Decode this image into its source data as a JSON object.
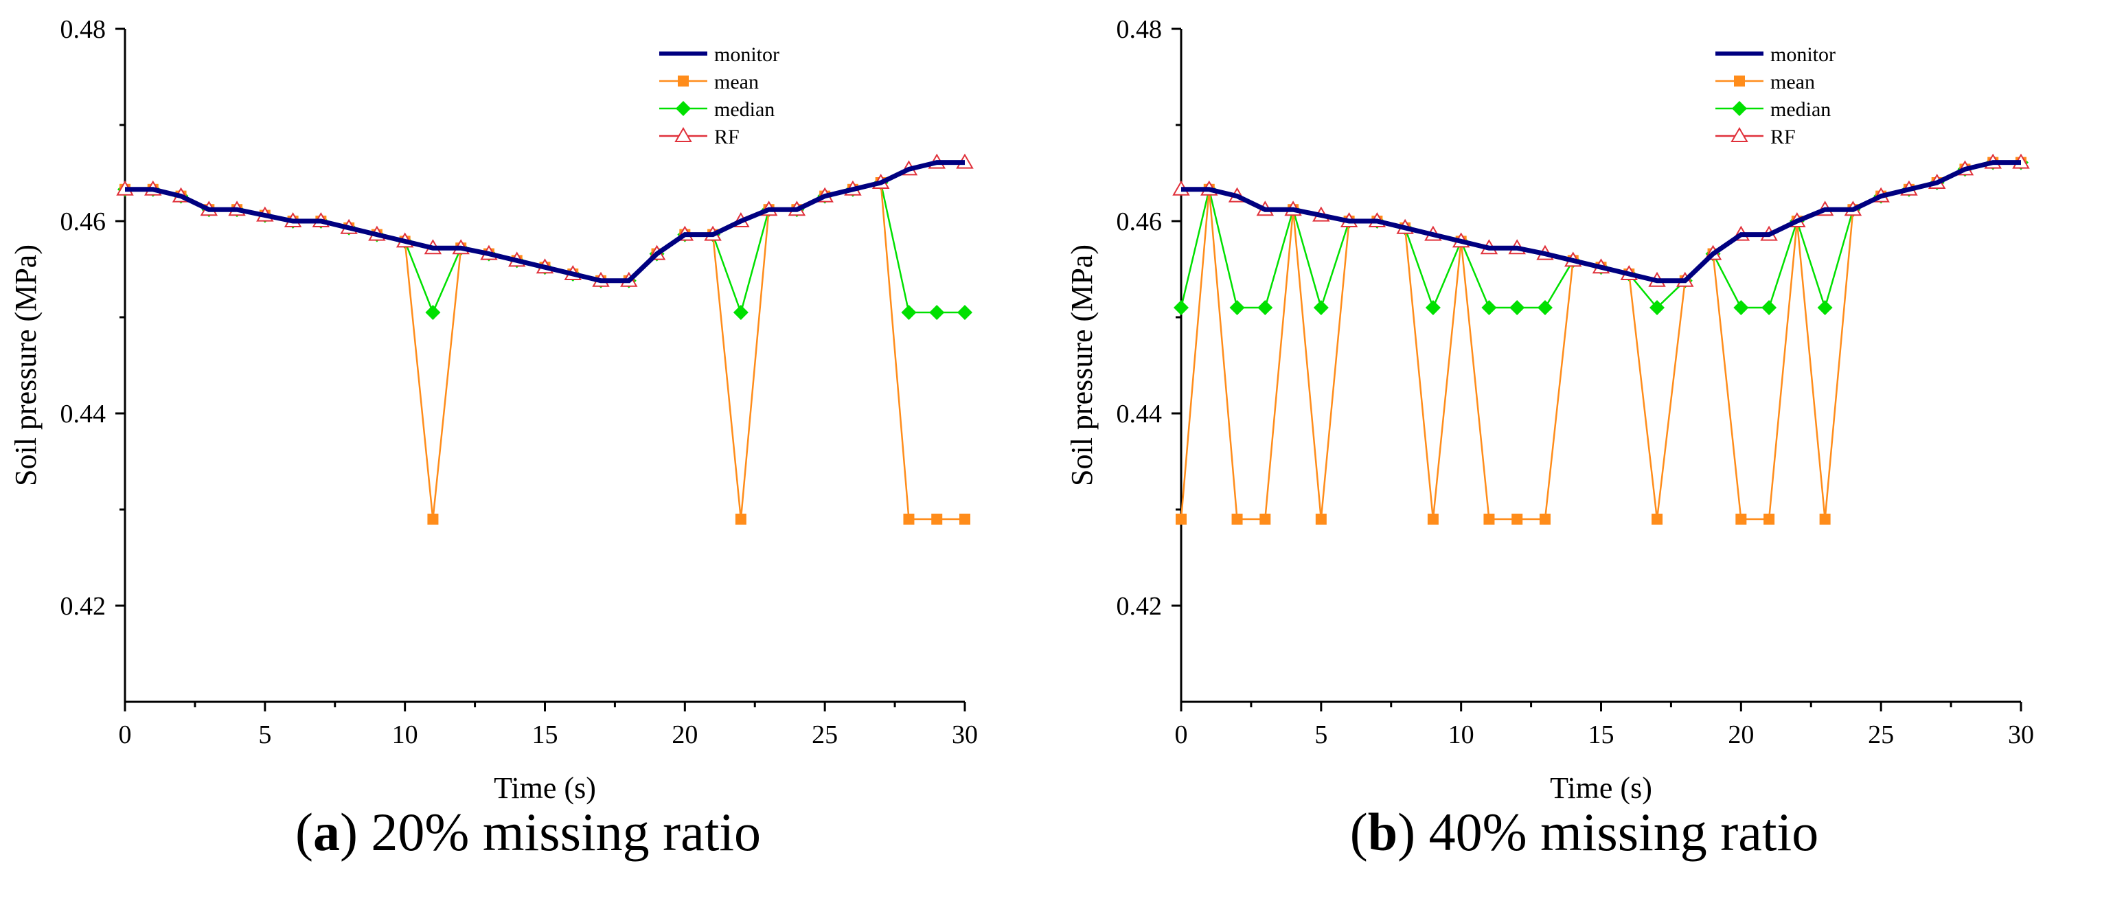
{
  "chart_data": [
    {
      "type": "line",
      "caption": {
        "open": "(",
        "letter": "a",
        "rest": ") 20% missing ratio"
      },
      "xlabel": "Time (s)",
      "ylabel": "Soil pressure (MPa)",
      "xlim": [
        0,
        30
      ],
      "ylim": [
        0.41,
        0.48
      ],
      "xticks": [
        0,
        5,
        10,
        15,
        20,
        25,
        30
      ],
      "yticks": [
        0.42,
        0.44,
        0.46,
        0.48
      ],
      "ytick_labels": [
        "0.42",
        "0.44",
        "0.46",
        "0.48"
      ],
      "grid": false,
      "legend_position": "top-right",
      "x": [
        0,
        1,
        2,
        3,
        4,
        5,
        6,
        7,
        8,
        9,
        10,
        11,
        12,
        13,
        14,
        15,
        16,
        17,
        18,
        19,
        20,
        21,
        22,
        23,
        24,
        25,
        26,
        27,
        28,
        29,
        30
      ],
      "series": [
        {
          "name": "monitor",
          "color": "#000080",
          "marker": "none",
          "values": [
            0.4633,
            0.4633,
            0.4626,
            0.4612,
            0.4612,
            0.4606,
            0.46,
            0.46,
            0.4593,
            0.4586,
            0.4579,
            0.4572,
            0.4572,
            0.4566,
            0.4559,
            0.4552,
            0.4545,
            0.4538,
            0.4538,
            0.4566,
            0.4586,
            0.4586,
            0.46,
            0.4612,
            0.4612,
            0.4626,
            0.4633,
            0.464,
            0.4654,
            0.4661,
            0.4661
          ]
        },
        {
          "name": "mean",
          "color": "#FF8C1A",
          "marker": "square",
          "values": [
            0.4633,
            0.4633,
            0.4626,
            0.4612,
            0.4612,
            0.4606,
            0.46,
            0.46,
            0.4593,
            0.4586,
            0.4579,
            0.429,
            0.4572,
            0.4566,
            0.4559,
            0.4552,
            0.4545,
            0.4538,
            0.4538,
            0.4566,
            0.4586,
            0.4586,
            0.429,
            0.4612,
            0.4612,
            0.4626,
            0.4633,
            0.464,
            0.429,
            0.429,
            0.429
          ]
        },
        {
          "name": "median",
          "color": "#00E000",
          "marker": "diamond",
          "values": [
            0.4633,
            0.4633,
            0.4626,
            0.4612,
            0.4612,
            0.4606,
            0.46,
            0.46,
            0.4593,
            0.4586,
            0.4579,
            0.4505,
            0.4572,
            0.4566,
            0.4559,
            0.4552,
            0.4545,
            0.4538,
            0.4538,
            0.4566,
            0.4586,
            0.4586,
            0.4505,
            0.4612,
            0.4612,
            0.4626,
            0.4633,
            0.464,
            0.4505,
            0.4505,
            0.4505
          ]
        },
        {
          "name": "RF",
          "color": "#E0303A",
          "marker": "triangle",
          "values": [
            0.4633,
            0.4633,
            0.4626,
            0.4612,
            0.4612,
            0.4606,
            0.46,
            0.46,
            0.4593,
            0.4586,
            0.4579,
            0.4572,
            0.4572,
            0.4566,
            0.4559,
            0.4552,
            0.4545,
            0.4538,
            0.4538,
            0.4566,
            0.4586,
            0.4586,
            0.46,
            0.4612,
            0.4612,
            0.4626,
            0.4633,
            0.464,
            0.4654,
            0.4661,
            0.4661
          ]
        }
      ]
    },
    {
      "type": "line",
      "caption": {
        "open": "(",
        "letter": "b",
        "rest": ") 40% missing ratio"
      },
      "xlabel": "Time (s)",
      "ylabel": "Soil pressure (MPa)",
      "xlim": [
        0,
        30
      ],
      "ylim": [
        0.41,
        0.48
      ],
      "xticks": [
        0,
        5,
        10,
        15,
        20,
        25,
        30
      ],
      "yticks": [
        0.42,
        0.44,
        0.46,
        0.48
      ],
      "ytick_labels": [
        "0.42",
        "0.44",
        "0.46",
        "0.48"
      ],
      "grid": false,
      "legend_position": "top-right",
      "x": [
        0,
        1,
        2,
        3,
        4,
        5,
        6,
        7,
        8,
        9,
        10,
        11,
        12,
        13,
        14,
        15,
        16,
        17,
        18,
        19,
        20,
        21,
        22,
        23,
        24,
        25,
        26,
        27,
        28,
        29,
        30
      ],
      "series": [
        {
          "name": "monitor",
          "color": "#000080",
          "marker": "none",
          "values": [
            0.4633,
            0.4633,
            0.4626,
            0.4612,
            0.4612,
            0.4606,
            0.46,
            0.46,
            0.4593,
            0.4586,
            0.4579,
            0.4572,
            0.4572,
            0.4566,
            0.4559,
            0.4552,
            0.4545,
            0.4538,
            0.4538,
            0.4566,
            0.4586,
            0.4586,
            0.46,
            0.4612,
            0.4612,
            0.4626,
            0.4633,
            0.464,
            0.4654,
            0.4661,
            0.4661
          ]
        },
        {
          "name": "mean",
          "color": "#FF8C1A",
          "marker": "square",
          "values": [
            0.429,
            0.4633,
            0.429,
            0.429,
            0.4612,
            0.429,
            0.46,
            0.46,
            0.4593,
            0.429,
            0.4579,
            0.429,
            0.429,
            0.429,
            0.4559,
            0.4552,
            0.4545,
            0.429,
            0.4538,
            0.4566,
            0.429,
            0.429,
            0.46,
            0.429,
            0.4612,
            0.4626,
            0.4633,
            0.464,
            0.4654,
            0.4661,
            0.4661
          ]
        },
        {
          "name": "median",
          "color": "#00E000",
          "marker": "diamond",
          "values": [
            0.451,
            0.4633,
            0.451,
            0.451,
            0.4612,
            0.451,
            0.46,
            0.46,
            0.4593,
            0.451,
            0.4579,
            0.451,
            0.451,
            0.451,
            0.4559,
            0.4552,
            0.4545,
            0.451,
            0.4538,
            0.4566,
            0.451,
            0.451,
            0.46,
            0.451,
            0.4612,
            0.4626,
            0.4633,
            0.464,
            0.4654,
            0.4661,
            0.4661
          ]
        },
        {
          "name": "RF",
          "color": "#E0303A",
          "marker": "triangle",
          "values": [
            0.4633,
            0.4633,
            0.4626,
            0.4612,
            0.4612,
            0.4606,
            0.46,
            0.46,
            0.4593,
            0.4586,
            0.4579,
            0.4572,
            0.4572,
            0.4566,
            0.4559,
            0.4552,
            0.4545,
            0.4538,
            0.4538,
            0.4566,
            0.4586,
            0.4586,
            0.46,
            0.4612,
            0.4612,
            0.4626,
            0.4633,
            0.464,
            0.4654,
            0.4661,
            0.4661
          ]
        }
      ]
    }
  ]
}
